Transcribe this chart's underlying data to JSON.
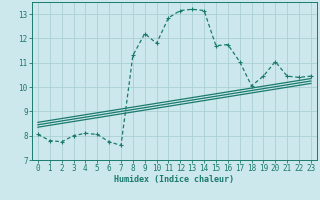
{
  "title": "",
  "xlabel": "Humidex (Indice chaleur)",
  "ylabel": "",
  "bg_color": "#cce8ec",
  "grid_color": "#aacfd4",
  "line_color": "#1a7a6e",
  "xlim": [
    -0.5,
    23.5
  ],
  "ylim": [
    7,
    13.5
  ],
  "xticks": [
    0,
    1,
    2,
    3,
    4,
    5,
    6,
    7,
    8,
    9,
    10,
    11,
    12,
    13,
    14,
    15,
    16,
    17,
    18,
    19,
    20,
    21,
    22,
    23
  ],
  "yticks": [
    7,
    8,
    9,
    10,
    11,
    12,
    13
  ],
  "main_series": [
    [
      0,
      8.05
    ],
    [
      1,
      7.8
    ],
    [
      2,
      7.75
    ],
    [
      3,
      8.0
    ],
    [
      4,
      8.1
    ],
    [
      5,
      8.05
    ],
    [
      6,
      7.75
    ],
    [
      7,
      7.6
    ],
    [
      8,
      11.3
    ],
    [
      9,
      12.2
    ],
    [
      10,
      11.8
    ],
    [
      11,
      12.85
    ],
    [
      12,
      13.15
    ],
    [
      13,
      13.2
    ],
    [
      14,
      13.15
    ],
    [
      15,
      11.7
    ],
    [
      16,
      11.75
    ],
    [
      17,
      11.05
    ],
    [
      18,
      10.05
    ],
    [
      19,
      10.45
    ],
    [
      20,
      11.05
    ],
    [
      21,
      10.45
    ],
    [
      22,
      10.4
    ],
    [
      23,
      10.45
    ]
  ],
  "linear_series": [
    [
      [
        0,
        8.35
      ],
      [
        23,
        10.15
      ]
    ],
    [
      [
        0,
        8.45
      ],
      [
        23,
        10.25
      ]
    ],
    [
      [
        0,
        8.55
      ],
      [
        23,
        10.35
      ]
    ]
  ]
}
